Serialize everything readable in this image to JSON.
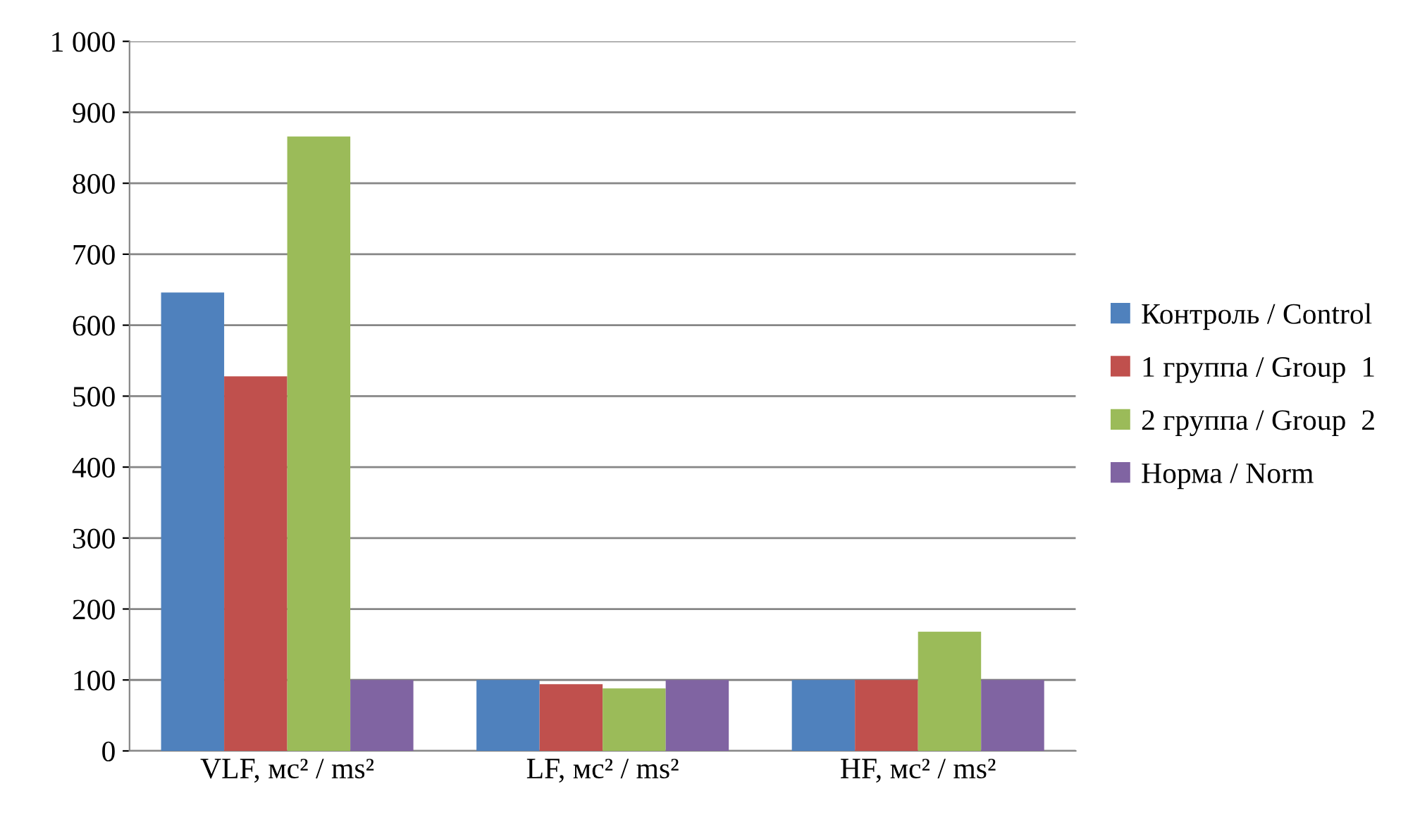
{
  "chart_data": {
    "type": "bar",
    "categories": [
      "VLF, мс² / ms²",
      "LF, мс² / ms²",
      "HF, мс² / ms²"
    ],
    "series": [
      {
        "name": "Контроль / Control",
        "color": "#4f81bd",
        "values": [
          646,
          100,
          100
        ]
      },
      {
        "name": "1 группа / Group  1",
        "color": "#c0504d",
        "values": [
          528,
          94,
          100
        ]
      },
      {
        "name": "2 группа / Group  2",
        "color": "#9bbb59",
        "values": [
          866,
          88,
          168
        ]
      },
      {
        "name": "Норма / Norm",
        "color": "#8064a2",
        "values": [
          100,
          100,
          100
        ]
      }
    ],
    "ylim": [
      0,
      1000
    ],
    "yticks": [
      0,
      100,
      200,
      300,
      400,
      500,
      600,
      700,
      800,
      900,
      {
        "value": 1000,
        "label": "1 000"
      }
    ],
    "grid": "y",
    "legend": "right"
  }
}
